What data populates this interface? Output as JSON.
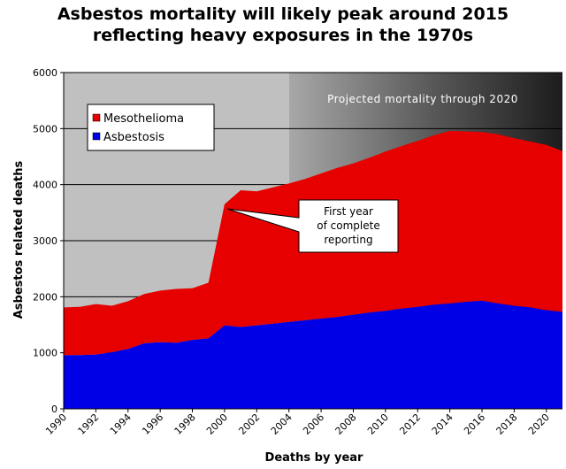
{
  "chart_data": {
    "type": "area",
    "title_line1": "Asbestos mortality will likely peak around 2015",
    "title_line2": "reflecting heavy exposures in the 1970s",
    "xlabel": "Deaths by year",
    "ylabel": "Asbestos related deaths",
    "ylim": [
      0,
      6000
    ],
    "yticks": [
      "0",
      "1000",
      "2000",
      "3000",
      "4000",
      "5000",
      "6000"
    ],
    "x": [
      1990,
      1991,
      1992,
      1993,
      1994,
      1995,
      1996,
      1997,
      1998,
      1999,
      2000,
      2001,
      2002,
      2003,
      2004,
      2005,
      2006,
      2007,
      2008,
      2009,
      2010,
      2011,
      2012,
      2013,
      2014,
      2015,
      2016,
      2017,
      2018,
      2019,
      2020,
      2021
    ],
    "xtick_labels": [
      "1990",
      "1992",
      "1994",
      "1996",
      "1998",
      "2000",
      "2002",
      "2004",
      "2006",
      "2008",
      "2010",
      "2012",
      "2014",
      "2016",
      "2018",
      "2020"
    ],
    "stacked": true,
    "series": [
      {
        "name": "Asbestosis",
        "color": "#0000e6",
        "values": [
          960,
          960,
          970,
          1010,
          1070,
          1170,
          1190,
          1180,
          1230,
          1260,
          1490,
          1460,
          1490,
          1520,
          1550,
          1580,
          1610,
          1640,
          1680,
          1720,
          1750,
          1790,
          1820,
          1860,
          1880,
          1910,
          1930,
          1880,
          1840,
          1810,
          1760,
          1730
        ]
      },
      {
        "name": "Mesothelioma",
        "color": "#e60000",
        "values": [
          850,
          860,
          900,
          830,
          850,
          880,
          920,
          960,
          920,
          990,
          2160,
          2440,
          2390,
          2430,
          2470,
          2520,
          2590,
          2660,
          2700,
          2760,
          2840,
          2900,
          2960,
          3020,
          3080,
          3040,
          3010,
          3020,
          2990,
          2960,
          2950,
          2870
        ]
      }
    ],
    "legend": {
      "placement": "top-left"
    },
    "grid": true,
    "regions": [
      {
        "name": "historical",
        "from": 1990,
        "to": 2004,
        "color": "#c0c0c0"
      },
      {
        "name": "projected",
        "from": 2004,
        "to": 2021,
        "label": "Projected mortality through 2020"
      }
    ],
    "annotation": {
      "lines": [
        "First year",
        "of complete",
        "reporting"
      ],
      "points_to": {
        "x": 2000.4,
        "y": 3600
      }
    }
  }
}
